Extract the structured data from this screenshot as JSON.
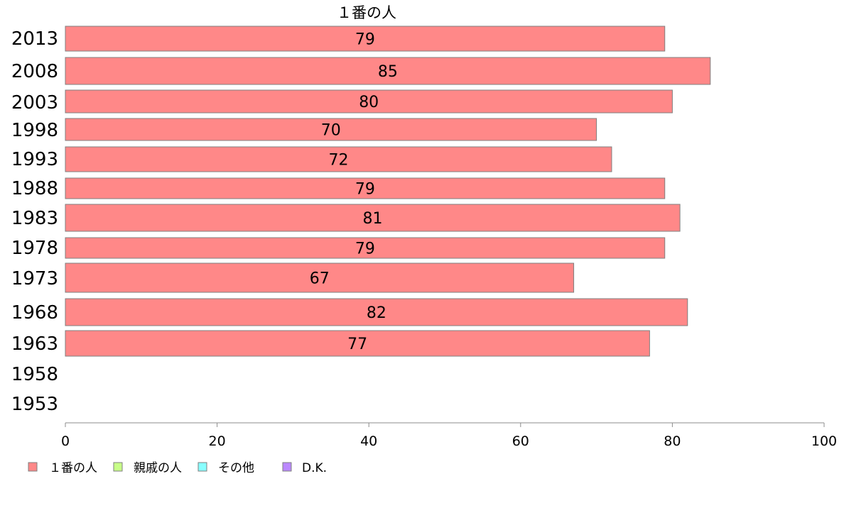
{
  "chart_data": {
    "type": "bar",
    "orientation": "horizontal",
    "title": "１番の人",
    "categories": [
      "2013",
      "2008",
      "2003",
      "1998",
      "1993",
      "1988",
      "1983",
      "1978",
      "1973",
      "1968",
      "1963",
      "1958",
      "1953"
    ],
    "series": [
      {
        "name": "１番の人",
        "color": "#ff8888",
        "values": [
          79,
          85,
          80,
          70,
          72,
          79,
          81,
          79,
          67,
          82,
          77,
          null,
          null
        ],
        "value_labels": [
          "79",
          "85",
          "80",
          "70",
          "72",
          "79",
          "81",
          "79",
          "67",
          "82",
          "77",
          "",
          ""
        ]
      }
    ],
    "xlim": [
      0,
      100
    ],
    "x_ticks": [
      0,
      20,
      40,
      60,
      80,
      100
    ],
    "x_tick_labels": [
      "0",
      "20",
      "40",
      "60",
      "80",
      "100"
    ],
    "grid": false,
    "legend_position": "bottom-left",
    "legend": [
      {
        "label": "１番の人",
        "color": "#ff8888"
      },
      {
        "label": "親戚の人",
        "color": "#c8ff88"
      },
      {
        "label": "その他",
        "color": "#88ffff"
      },
      {
        "label": "D.K.",
        "color": "#bb88ff"
      }
    ]
  }
}
